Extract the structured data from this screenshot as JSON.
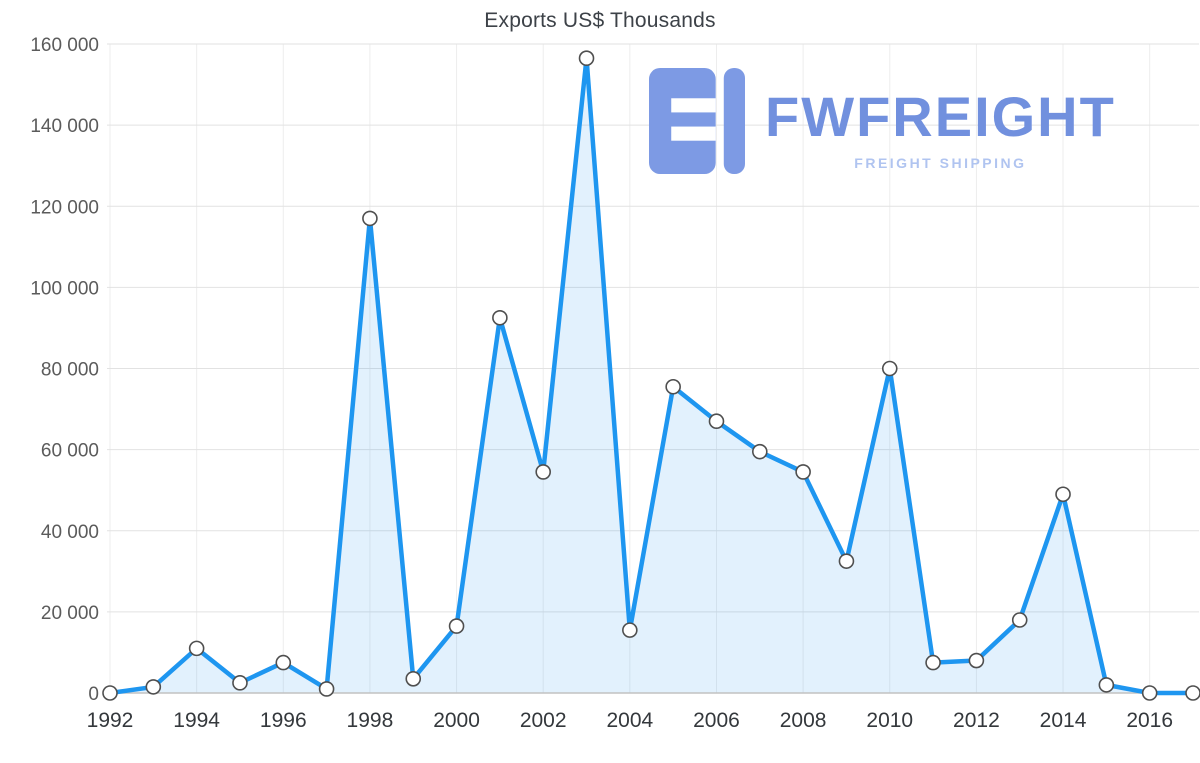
{
  "title": "Exports US$ Thousands",
  "logo": {
    "name": "FWFREIGHT",
    "tagline": "FREIGHT SHIPPING",
    "brand_blue": "#7190de",
    "brand_light_blue": "#b0c4f0"
  },
  "chart_data": {
    "type": "area",
    "title": "Exports US$ Thousands",
    "xlabel": "",
    "ylabel": "",
    "x": [
      1992,
      1993,
      1994,
      1995,
      1996,
      1997,
      1998,
      1999,
      2000,
      2001,
      2002,
      2003,
      2004,
      2005,
      2006,
      2007,
      2008,
      2009,
      2010,
      2011,
      2012,
      2013,
      2014,
      2015,
      2016,
      2017
    ],
    "values": [
      0,
      1500,
      11000,
      2500,
      7500,
      1000,
      117000,
      3500,
      16500,
      92500,
      54500,
      156500,
      15500,
      75500,
      67000,
      59500,
      54500,
      32500,
      80000,
      7500,
      8000,
      18000,
      49000,
      2000,
      0,
      0
    ],
    "x_ticks": [
      1992,
      1994,
      1996,
      1998,
      2000,
      2002,
      2004,
      2006,
      2008,
      2010,
      2012,
      2014,
      2016
    ],
    "y_ticks": [
      0,
      20000,
      40000,
      60000,
      80000,
      100000,
      120000,
      140000,
      160000
    ],
    "y_tick_labels": [
      "0",
      "20 000",
      "40 000",
      "60 000",
      "80 000",
      "100 000",
      "120 000",
      "140 000",
      "160 000"
    ],
    "ylim": [
      0,
      160000
    ],
    "xlim": [
      1992,
      2017
    ],
    "grid": true,
    "legend": false,
    "colors": {
      "line": "#1e96f0",
      "area_fill": "#1e96f0",
      "area_opacity": 0.13,
      "marker_fill": "#ffffff",
      "marker_stroke": "#4f4f4f",
      "grid": "#e2e2e2",
      "grid_vertical": "#ededed",
      "axis": "#c2c2c2",
      "y_label_color": "#5b5b5b",
      "x_label_color": "#34383c",
      "title_color": "#3d4248"
    }
  }
}
